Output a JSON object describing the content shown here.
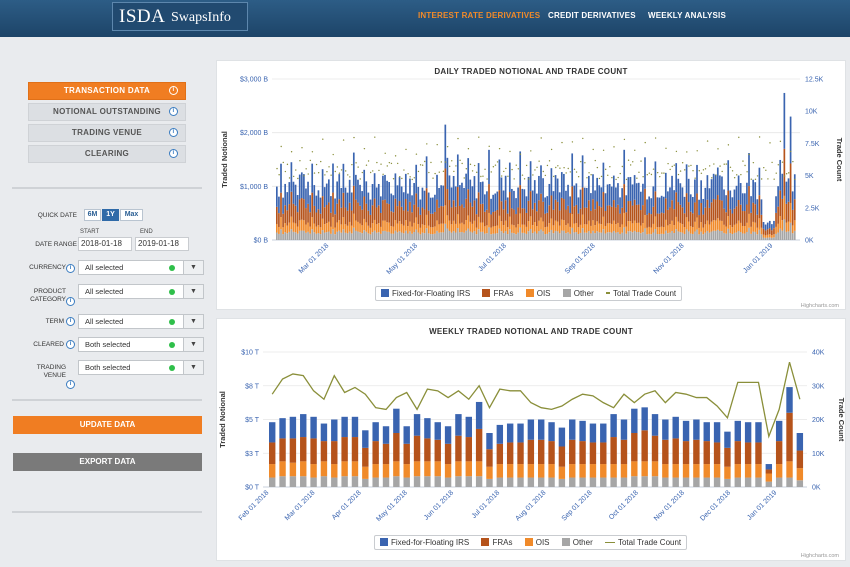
{
  "header": {
    "logo_isda": "ISDA",
    "logo_swaps": "SwapsInfo",
    "nav": [
      "INTEREST RATE DERIVATIVES",
      "CREDIT DERIVATIVES",
      "WEEKLY ANALYSIS"
    ],
    "active_nav": "INTEREST RATE DERIVATIVES",
    "colors": {
      "header_bg": "#1f4a70",
      "active": "#f08a2a"
    }
  },
  "sidebar": {
    "data_buttons": [
      "TRANSACTION DATA",
      "NOTIONAL OUTSTANDING",
      "TRADING VENUE",
      "CLEARING"
    ],
    "active_button": "TRANSACTION DATA",
    "quick_date_label": "QUICK DATE",
    "quick_date_options": [
      "6M",
      "1Y",
      "Max"
    ],
    "quick_date_selected": "1Y",
    "date_range_label": "DATE RANGE",
    "start_label": "START",
    "end_label": "END",
    "start_date": "2018-01-18",
    "end_date": "2019-01-18",
    "filters": [
      {
        "label": "CURRENCY",
        "value": "All selected"
      },
      {
        "label": "PRODUCT CATEGORY",
        "value": "All selected"
      },
      {
        "label": "TERM",
        "value": "All selected"
      },
      {
        "label": "CLEARED",
        "value": "Both selected"
      },
      {
        "label": "TRADING VENUE",
        "value": "Both selected"
      }
    ],
    "update_label": "UPDATE DATA",
    "export_label": "EXPORT DATA",
    "colors": {
      "accent": "#f07d22",
      "export": "#7a7a7a"
    }
  },
  "credits": "Highcharts.com",
  "chart_data": [
    {
      "type": "bar",
      "title": "DAILY TRADED NOTIONAL AND TRADE COUNT",
      "ylabel": "Traded Notional",
      "y2label": "Trade Count",
      "yticks": [
        "$0 B",
        "$1,000 B",
        "$2,000 B",
        "$3,000 B"
      ],
      "y2ticks": [
        "0K",
        "2.5K",
        "5K",
        "7.5K",
        "10K",
        "12.5K"
      ],
      "ylim": [
        0,
        3000
      ],
      "y2lim": [
        0,
        12500
      ],
      "xticks": [
        "Mar 01 2018",
        "May 01 2018",
        "Jul 01 2018",
        "Sep 01 2018",
        "Nov 01 2018",
        "Jan 01 2019"
      ],
      "series_names": [
        "Fixed-for-Floating IRS",
        "FRAs",
        "OIS",
        "Other",
        "Total Trade Count"
      ],
      "series_colors": [
        "#3a64b0",
        "#b5531b",
        "#f08a2a",
        "#a6a6a6",
        "#8a8f3a"
      ],
      "n_days": 250,
      "note": "Stacked daily bars; trade count shown as scatter dots"
    },
    {
      "type": "bar",
      "title": "WEEKLY TRADED NOTIONAL AND TRADE COUNT",
      "ylabel": "Traded Notional",
      "y2label": "Trade Count",
      "yticks": [
        "$0 T",
        "$3 T",
        "$5 T",
        "$8 T",
        "$10 T"
      ],
      "y2ticks": [
        "0K",
        "10K",
        "20K",
        "30K",
        "40K"
      ],
      "ylim": [
        0,
        10
      ],
      "y2lim": [
        0,
        40000
      ],
      "xticks": [
        "Feb 01 2018",
        "Mar 01 2018",
        "Apr 01 2018",
        "May 01 2018",
        "Jun 01 2018",
        "Jul 01 2018",
        "Aug 01 2018",
        "Sep 01 2018",
        "Oct 01 2018",
        "Nov 01 2018",
        "Dec 01 2018",
        "Jan 01 2019"
      ],
      "series_names": [
        "Fixed-for-Floating IRS",
        "FRAs",
        "OIS",
        "Other",
        "Total Trade Count"
      ],
      "series_colors": [
        "#3a64b0",
        "#b5531b",
        "#f08a2a",
        "#a6a6a6",
        "#8a8f3a"
      ],
      "series": [
        {
          "name": "Other",
          "values": [
            0.7,
            0.8,
            0.8,
            0.8,
            0.7,
            0.8,
            0.7,
            0.8,
            0.8,
            0.6,
            0.7,
            0.7,
            0.8,
            0.7,
            0.8,
            0.8,
            0.8,
            0.7,
            0.8,
            0.8,
            0.8,
            0.6,
            0.7,
            0.7,
            0.7,
            0.7,
            0.7,
            0.7,
            0.6,
            0.7,
            0.7,
            0.7,
            0.7,
            0.7,
            0.7,
            0.8,
            0.8,
            0.8,
            0.7,
            0.7,
            0.7,
            0.7,
            0.7,
            0.7,
            0.6,
            0.7,
            0.7,
            0.7,
            0.4,
            0.7,
            0.7,
            0.5
          ]
        },
        {
          "name": "OIS",
          "values": [
            1.0,
            1.1,
            1.0,
            1.1,
            1.0,
            1.1,
            1.0,
            1.1,
            1.1,
            0.9,
            1.0,
            1.0,
            1.1,
            1.0,
            1.1,
            1.1,
            1.1,
            1.0,
            1.1,
            1.1,
            1.1,
            0.9,
            1.0,
            1.0,
            1.0,
            1.0,
            1.0,
            1.0,
            0.9,
            1.0,
            1.0,
            1.0,
            1.0,
            1.0,
            1.0,
            1.1,
            1.1,
            1.1,
            1.0,
            1.0,
            1.0,
            1.0,
            1.0,
            1.0,
            0.9,
            1.0,
            1.0,
            1.0,
            0.6,
            1.0,
            1.2,
            0.9
          ]
        },
        {
          "name": "FRAs",
          "values": [
            1.6,
            1.7,
            1.8,
            1.8,
            1.9,
            1.5,
            1.7,
            1.8,
            1.8,
            1.4,
            1.7,
            1.5,
            2.1,
            1.5,
            1.9,
            1.7,
            1.6,
            1.5,
            1.9,
            1.8,
            2.4,
            1.3,
            1.5,
            1.6,
            1.6,
            1.8,
            1.8,
            1.7,
            1.5,
            1.8,
            1.7,
            1.6,
            1.6,
            2.0,
            1.8,
            2.1,
            2.3,
            1.9,
            1.8,
            1.9,
            1.7,
            1.8,
            1.7,
            1.6,
            1.4,
            1.7,
            1.6,
            1.6,
            0.3,
            1.7,
            3.6,
            1.3
          ]
        },
        {
          "name": "Fixed-for-Floating IRS",
          "values": [
            1.5,
            1.5,
            1.6,
            1.7,
            1.6,
            1.3,
            1.6,
            1.5,
            1.5,
            1.3,
            1.4,
            1.3,
            1.8,
            1.3,
            1.6,
            1.5,
            1.3,
            1.3,
            1.6,
            1.5,
            2.0,
            1.2,
            1.4,
            1.4,
            1.4,
            1.5,
            1.5,
            1.4,
            1.4,
            1.5,
            1.5,
            1.4,
            1.4,
            1.7,
            1.5,
            1.8,
            1.7,
            1.6,
            1.5,
            1.6,
            1.5,
            1.5,
            1.4,
            1.5,
            1.2,
            1.5,
            1.5,
            1.5,
            0.4,
            1.5,
            1.9,
            1.3
          ]
        },
        {
          "name": "Total Trade Count",
          "values": [
            27500,
            32000,
            33500,
            33000,
            28500,
            26000,
            33000,
            28000,
            29500,
            27500,
            23500,
            23000,
            26500,
            28000,
            23000,
            29000,
            28500,
            26500,
            28500,
            26000,
            30000,
            23500,
            29000,
            28500,
            28500,
            25000,
            23500,
            23000,
            24000,
            26000,
            27500,
            27000,
            25000,
            23500,
            27500,
            25000,
            27500,
            28500,
            25000,
            28000,
            27500,
            26500,
            26500,
            24000,
            20500,
            31000,
            31000,
            31000,
            15000,
            23000,
            37000,
            26000
          ]
        }
      ]
    }
  ]
}
